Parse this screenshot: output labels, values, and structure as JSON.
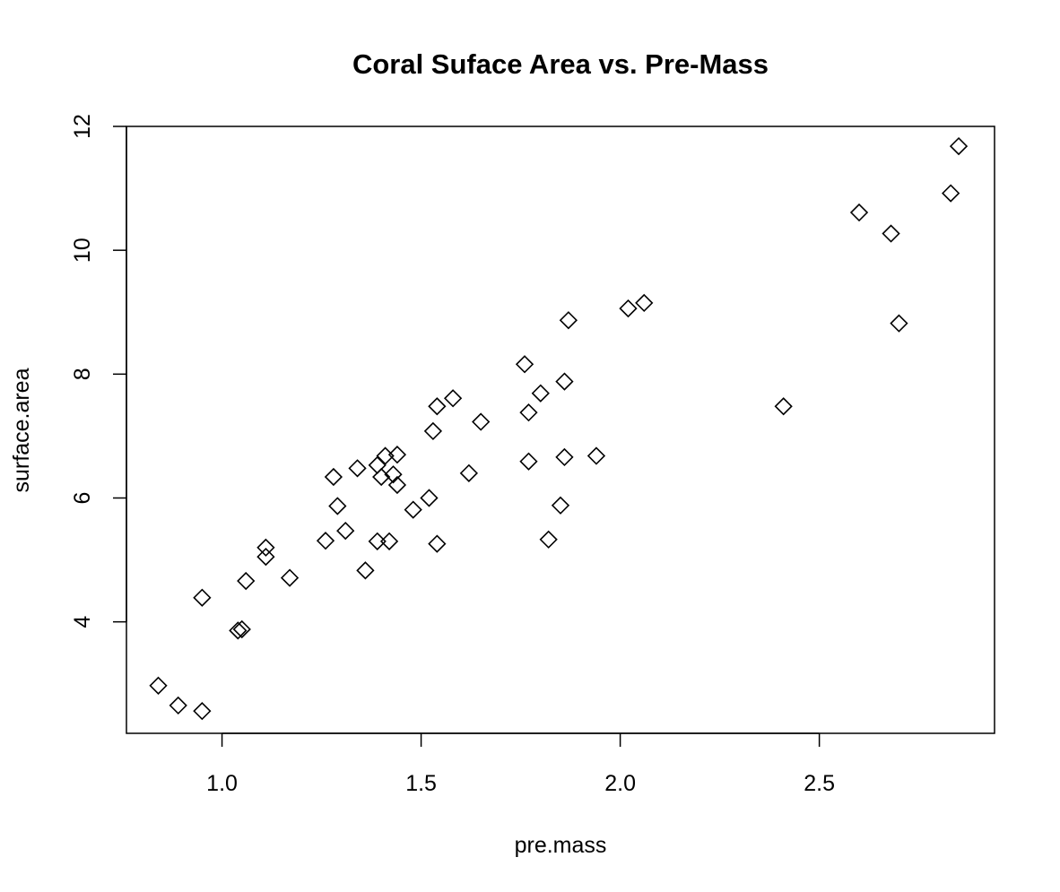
{
  "chart_data": {
    "type": "scatter",
    "title": "Coral Suface Area vs. Pre-Mass",
    "xlabel": "pre.mass",
    "ylabel": "surface.area",
    "xlim": [
      0.76,
      2.94
    ],
    "ylim": [
      2.2,
      12.0
    ],
    "xticks": [
      1.0,
      1.5,
      2.0,
      2.5
    ],
    "xtick_labels": [
      "1.0",
      "1.5",
      "2.0",
      "2.5"
    ],
    "yticks": [
      4,
      6,
      8,
      10,
      12
    ],
    "ytick_labels": [
      "4",
      "6",
      "8",
      "10",
      "12"
    ],
    "grid": false,
    "marker": "open-diamond",
    "marker_color": "#000000",
    "points": [
      {
        "x": 0.84,
        "y": 2.97
      },
      {
        "x": 0.89,
        "y": 2.65
      },
      {
        "x": 0.95,
        "y": 2.56
      },
      {
        "x": 0.95,
        "y": 4.39
      },
      {
        "x": 1.04,
        "y": 3.86
      },
      {
        "x": 1.05,
        "y": 3.88
      },
      {
        "x": 1.06,
        "y": 4.66
      },
      {
        "x": 1.11,
        "y": 5.05
      },
      {
        "x": 1.11,
        "y": 5.2
      },
      {
        "x": 1.17,
        "y": 4.71
      },
      {
        "x": 1.26,
        "y": 5.31
      },
      {
        "x": 1.28,
        "y": 6.34
      },
      {
        "x": 1.29,
        "y": 5.87
      },
      {
        "x": 1.31,
        "y": 5.47
      },
      {
        "x": 1.34,
        "y": 6.48
      },
      {
        "x": 1.36,
        "y": 4.83
      },
      {
        "x": 1.39,
        "y": 6.53
      },
      {
        "x": 1.39,
        "y": 5.3
      },
      {
        "x": 1.4,
        "y": 6.34
      },
      {
        "x": 1.41,
        "y": 6.68
      },
      {
        "x": 1.42,
        "y": 5.3
      },
      {
        "x": 1.43,
        "y": 6.38
      },
      {
        "x": 1.44,
        "y": 6.7
      },
      {
        "x": 1.44,
        "y": 6.21
      },
      {
        "x": 1.48,
        "y": 5.81
      },
      {
        "x": 1.52,
        "y": 6.0
      },
      {
        "x": 1.53,
        "y": 7.08
      },
      {
        "x": 1.54,
        "y": 5.26
      },
      {
        "x": 1.54,
        "y": 7.48
      },
      {
        "x": 1.58,
        "y": 7.61
      },
      {
        "x": 1.62,
        "y": 6.4
      },
      {
        "x": 1.65,
        "y": 7.23
      },
      {
        "x": 1.76,
        "y": 8.16
      },
      {
        "x": 1.77,
        "y": 6.59
      },
      {
        "x": 1.77,
        "y": 7.38
      },
      {
        "x": 1.8,
        "y": 7.69
      },
      {
        "x": 1.82,
        "y": 5.33
      },
      {
        "x": 1.85,
        "y": 5.88
      },
      {
        "x": 1.86,
        "y": 6.66
      },
      {
        "x": 1.86,
        "y": 7.88
      },
      {
        "x": 1.87,
        "y": 8.87
      },
      {
        "x": 1.94,
        "y": 6.68
      },
      {
        "x": 2.02,
        "y": 9.06
      },
      {
        "x": 2.06,
        "y": 9.15
      },
      {
        "x": 2.41,
        "y": 7.48
      },
      {
        "x": 2.6,
        "y": 10.61
      },
      {
        "x": 2.68,
        "y": 10.27
      },
      {
        "x": 2.7,
        "y": 8.82
      },
      {
        "x": 2.83,
        "y": 10.92
      },
      {
        "x": 2.85,
        "y": 11.68
      }
    ]
  }
}
